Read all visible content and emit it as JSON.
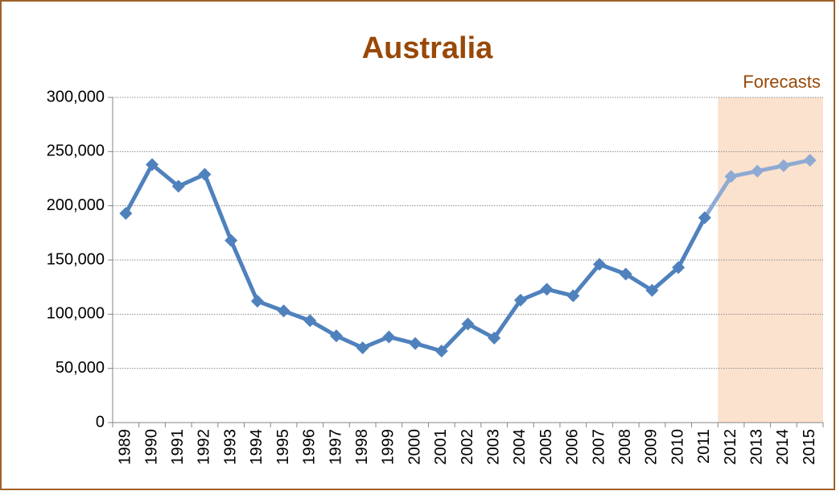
{
  "chart_data": {
    "type": "line",
    "title": "Australia",
    "categories": [
      "1989",
      "1990",
      "1991",
      "1992",
      "1993",
      "1994",
      "1995",
      "1996",
      "1997",
      "1998",
      "1999",
      "2000",
      "2001",
      "2002",
      "2003",
      "2004",
      "2005",
      "2006",
      "2007",
      "2008",
      "2009",
      "2010",
      "2011",
      "2012",
      "2013",
      "2014",
      "2015"
    ],
    "series": [
      {
        "color": "#4f81bd",
        "forecast_color": "#8eaad2",
        "values": [
          193000,
          238000,
          218000,
          229000,
          168000,
          112000,
          103000,
          94000,
          80000,
          69000,
          79000,
          73000,
          66000,
          91000,
          78000,
          113000,
          123000,
          117000,
          146000,
          137000,
          122000,
          143000,
          189000,
          227000,
          232000,
          237000,
          242000
        ]
      }
    ],
    "forecast": {
      "label": "Forecasts",
      "from": "2012",
      "color": "#fbe2cf"
    },
    "ylim": [
      0,
      300000
    ],
    "yticks": [
      0,
      {
        "value": 50000,
        "label": "50,000"
      },
      {
        "value": 100000,
        "label": "100,000"
      },
      {
        "value": 150000,
        "label": "150,000"
      },
      {
        "value": 200000,
        "label": "200,000"
      },
      {
        "value": 250000,
        "label": "250,000"
      },
      {
        "value": 300000,
        "label": "300,000"
      }
    ],
    "grid": true
  }
}
